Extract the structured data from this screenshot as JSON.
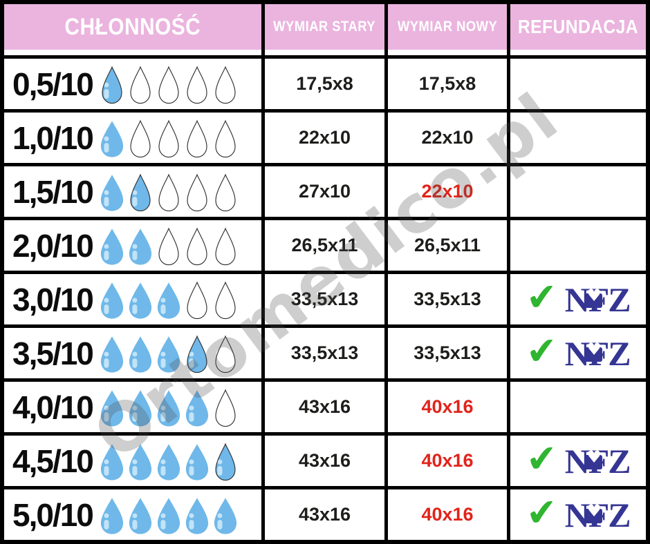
{
  "watermark": "Ortomedico.pl",
  "refund": {
    "check_glyph": "✔",
    "logo_letters": [
      "N",
      "F",
      "Z"
    ],
    "heart_glyph": "♥"
  },
  "colors": {
    "header_pink": "#eab4de",
    "header_text": "#ffffff",
    "drop_blue": "#6fb8e9",
    "drop_highlight": "#c2e3f8",
    "changed_red": "#e2231a",
    "nfz_navy": "#353594",
    "check_green": "#2fb52f",
    "grid_black": "#000000"
  },
  "chart_data": {
    "type": "table",
    "columns": [
      "CHŁONNOŚĆ",
      "WYMIAR STARY",
      "WYMIAR NOWY",
      "REFUNDACJA"
    ],
    "drops_scale_max": 5,
    "rows": [
      {
        "absorbency": "0,5/10",
        "drops_filled": 0.5,
        "drops_total": 5,
        "wymiar_stary": "17,5x8",
        "wymiar_nowy": "17,5x8",
        "nowy_highlighted_red": false,
        "refundacja_nfz": false
      },
      {
        "absorbency": "1,0/10",
        "drops_filled": 1,
        "drops_total": 5,
        "wymiar_stary": "22x10",
        "wymiar_nowy": "22x10",
        "nowy_highlighted_red": false,
        "refundacja_nfz": false
      },
      {
        "absorbency": "1,5/10",
        "drops_filled": 1.5,
        "drops_total": 5,
        "wymiar_stary": "27x10",
        "wymiar_nowy": "22x10",
        "nowy_highlighted_red": true,
        "refundacja_nfz": false
      },
      {
        "absorbency": "2,0/10",
        "drops_filled": 2,
        "drops_total": 5,
        "wymiar_stary": "26,5x11",
        "wymiar_nowy": "26,5x11",
        "nowy_highlighted_red": false,
        "refundacja_nfz": false
      },
      {
        "absorbency": "3,0/10",
        "drops_filled": 3,
        "drops_total": 5,
        "wymiar_stary": "33,5x13",
        "wymiar_nowy": "33,5x13",
        "nowy_highlighted_red": false,
        "refundacja_nfz": true
      },
      {
        "absorbency": "3,5/10",
        "drops_filled": 3.5,
        "drops_total": 5,
        "wymiar_stary": "33,5x13",
        "wymiar_nowy": "33,5x13",
        "nowy_highlighted_red": false,
        "refundacja_nfz": true
      },
      {
        "absorbency": "4,0/10",
        "drops_filled": 4,
        "drops_total": 5,
        "wymiar_stary": "43x16",
        "wymiar_nowy": "40x16",
        "nowy_highlighted_red": true,
        "refundacja_nfz": false
      },
      {
        "absorbency": "4,5/10",
        "drops_filled": 4.5,
        "drops_total": 5,
        "wymiar_stary": "43x16",
        "wymiar_nowy": "40x16",
        "nowy_highlighted_red": true,
        "refundacja_nfz": true
      },
      {
        "absorbency": "5,0/10",
        "drops_filled": 5,
        "drops_total": 5,
        "wymiar_stary": "43x16",
        "wymiar_nowy": "40x16",
        "nowy_highlighted_red": true,
        "refundacja_nfz": true
      }
    ]
  }
}
